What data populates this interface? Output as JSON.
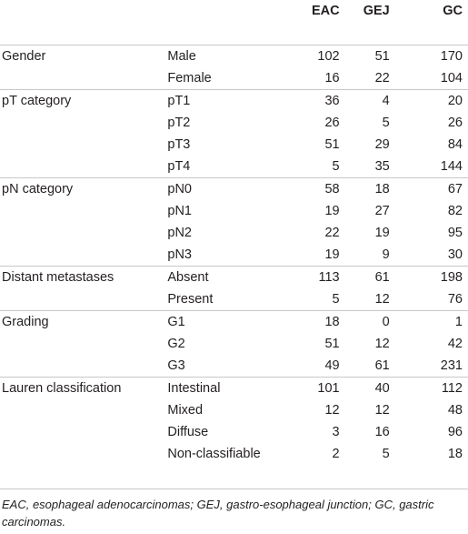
{
  "table": {
    "headers": [
      "",
      "",
      "EAC",
      "GEJ",
      "GC"
    ],
    "groups": [
      {
        "variable": "Gender",
        "rows": [
          {
            "category": "Male",
            "eac": "102",
            "gej": "51",
            "gc": "170"
          },
          {
            "category": "Female",
            "eac": "16",
            "gej": "22",
            "gc": "104"
          }
        ]
      },
      {
        "variable": "pT category",
        "rows": [
          {
            "category": "pT1",
            "eac": "36",
            "gej": "4",
            "gc": "20"
          },
          {
            "category": "pT2",
            "eac": "26",
            "gej": "5",
            "gc": "26"
          },
          {
            "category": "pT3",
            "eac": "51",
            "gej": "29",
            "gc": "84"
          },
          {
            "category": "pT4",
            "eac": "5",
            "gej": "35",
            "gc": "144"
          }
        ]
      },
      {
        "variable": "pN category",
        "rows": [
          {
            "category": "pN0",
            "eac": "58",
            "gej": "18",
            "gc": "67"
          },
          {
            "category": "pN1",
            "eac": "19",
            "gej": "27",
            "gc": "82"
          },
          {
            "category": "pN2",
            "eac": "22",
            "gej": "19",
            "gc": "95"
          },
          {
            "category": "pN3",
            "eac": "19",
            "gej": "9",
            "gc": "30"
          }
        ]
      },
      {
        "variable": "Distant metastases",
        "rows": [
          {
            "category": "Absent",
            "eac": "113",
            "gej": "61",
            "gc": "198"
          },
          {
            "category": "Present",
            "eac": "5",
            "gej": "12",
            "gc": "76"
          }
        ]
      },
      {
        "variable": "Grading",
        "rows": [
          {
            "category": "G1",
            "eac": "18",
            "gej": "0",
            "gc": "1"
          },
          {
            "category": "G2",
            "eac": "51",
            "gej": "12",
            "gc": "42"
          },
          {
            "category": "G3",
            "eac": "49",
            "gej": "61",
            "gc": "231"
          }
        ]
      },
      {
        "variable": "Lauren classification",
        "rows": [
          {
            "category": "Intestinal",
            "eac": "101",
            "gej": "40",
            "gc": "112"
          },
          {
            "category": "Mixed",
            "eac": "12",
            "gej": "12",
            "gc": "48"
          },
          {
            "category": "Diffuse",
            "eac": "3",
            "gej": "16",
            "gc": "96"
          },
          {
            "category": "Non-classifiable",
            "eac": "2",
            "gej": "5",
            "gc": "18"
          }
        ]
      }
    ]
  },
  "footnote": "EAC, esophageal adenocarcinomas; GEJ, gastro-esophageal junction; GC, gastric carcinomas.",
  "colors": {
    "text": "#231f20",
    "rule": "#c8c8c8",
    "background": "#ffffff"
  }
}
